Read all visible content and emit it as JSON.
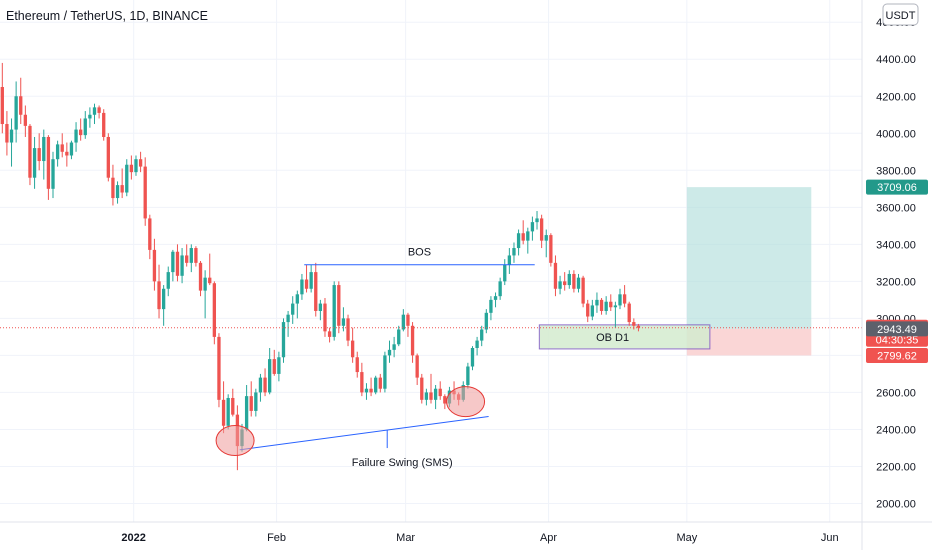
{
  "header": {
    "symbol_title": "Ethereum / TetherUS, 1D, BINANCE",
    "currency": "USDT"
  },
  "colors": {
    "up": "#26a69a",
    "down": "#ef5350",
    "grid": "#f0f3fa",
    "axis_text": "#131722",
    "line": "#2962ff",
    "target_zone": "#b2dfdb",
    "stop_zone": "#f8c4c4",
    "ob_zone": "#d4ecd0",
    "price_line": "#ef5350"
  },
  "chart_data": {
    "type": "candlestick",
    "title": "Ethereum / TetherUS, 1D, BINANCE",
    "ylim": [
      1900,
      4720
    ],
    "y_ticks": [
      2000,
      2200,
      2400,
      2600,
      2800,
      3000,
      3200,
      3400,
      3600,
      3800,
      4000,
      4200,
      4400,
      4600
    ],
    "y_tick_labels": [
      "2000.00",
      "2200.00",
      "2400.00",
      "2600.00",
      "2800.00",
      "3000.00",
      "3200.00",
      "3400.00",
      "3600.00",
      "3800.00",
      "4000.00",
      "4200.00",
      "4400.00",
      "4600.00"
    ],
    "x_start_date": "2021-12-03",
    "x_end_date": "2022-06-08",
    "x_ticks": [
      {
        "date": "2022-01-01",
        "label": "2022",
        "bold": true
      },
      {
        "date": "2022-02-01",
        "label": "Feb",
        "bold": false
      },
      {
        "date": "2022-03-01",
        "label": "Mar",
        "bold": false
      },
      {
        "date": "2022-04-01",
        "label": "Apr",
        "bold": false
      },
      {
        "date": "2022-05-01",
        "label": "May",
        "bold": false
      },
      {
        "date": "2022-06-01",
        "label": "Jun",
        "bold": false
      }
    ],
    "first_candle_date": "2021-12-03",
    "ohlc": [
      [
        4250,
        4380,
        4000,
        4050
      ],
      [
        4050,
        4120,
        3880,
        3950
      ],
      [
        3950,
        4080,
        3820,
        4020
      ],
      [
        4020,
        4280,
        3950,
        4200
      ],
      [
        4200,
        4300,
        4050,
        4100
      ],
      [
        4100,
        4150,
        3980,
        4040
      ],
      [
        4040,
        4050,
        3720,
        3760
      ],
      [
        3760,
        3980,
        3700,
        3920
      ],
      [
        3920,
        4000,
        3800,
        3850
      ],
      [
        3850,
        4020,
        3750,
        3980
      ],
      [
        3980,
        3990,
        3640,
        3700
      ],
      [
        3700,
        3900,
        3650,
        3860
      ],
      [
        3860,
        3960,
        3820,
        3940
      ],
      [
        3940,
        4000,
        3870,
        3900
      ],
      [
        3900,
        3950,
        3820,
        3880
      ],
      [
        3880,
        3960,
        3860,
        3950
      ],
      [
        3950,
        4060,
        3900,
        4020
      ],
      [
        4020,
        4080,
        3960,
        3990
      ],
      [
        3990,
        4120,
        3970,
        4080
      ],
      [
        4080,
        4140,
        4030,
        4100
      ],
      [
        4100,
        4160,
        4050,
        4140
      ],
      [
        4140,
        4150,
        4080,
        4110
      ],
      [
        4110,
        4130,
        3960,
        3980
      ],
      [
        3980,
        4000,
        3740,
        3760
      ],
      [
        3760,
        3830,
        3610,
        3650
      ],
      [
        3650,
        3740,
        3620,
        3720
      ],
      [
        3720,
        3810,
        3650,
        3680
      ],
      [
        3680,
        3860,
        3660,
        3830
      ],
      [
        3830,
        3880,
        3750,
        3790
      ],
      [
        3790,
        3880,
        3770,
        3860
      ],
      [
        3860,
        3900,
        3790,
        3820
      ],
      [
        3820,
        3870,
        3500,
        3540
      ],
      [
        3540,
        3560,
        3320,
        3370
      ],
      [
        3370,
        3430,
        3150,
        3200
      ],
      [
        3200,
        3290,
        3000,
        3050
      ],
      [
        3050,
        3180,
        2960,
        3160
      ],
      [
        3160,
        3280,
        3120,
        3250
      ],
      [
        3250,
        3370,
        3200,
        3360
      ],
      [
        3360,
        3400,
        3200,
        3230
      ],
      [
        3230,
        3380,
        3190,
        3340
      ],
      [
        3340,
        3400,
        3280,
        3300
      ],
      [
        3300,
        3400,
        3250,
        3380
      ],
      [
        3380,
        3390,
        3280,
        3300
      ],
      [
        3300,
        3310,
        3120,
        3150
      ],
      [
        3150,
        3260,
        3000,
        3220
      ],
      [
        3220,
        3350,
        3180,
        3190
      ],
      [
        3190,
        3200,
        2860,
        2900
      ],
      [
        2900,
        2920,
        2520,
        2560
      ],
      [
        2560,
        2660,
        2380,
        2420
      ],
      [
        2420,
        2590,
        2400,
        2570
      ],
      [
        2570,
        2620,
        2470,
        2480
      ],
      [
        2480,
        2530,
        2180,
        2310
      ],
      [
        2310,
        2430,
        2280,
        2400
      ],
      [
        2400,
        2640,
        2390,
        2580
      ],
      [
        2580,
        2660,
        2470,
        2500
      ],
      [
        2500,
        2620,
        2470,
        2600
      ],
      [
        2600,
        2700,
        2550,
        2680
      ],
      [
        2680,
        2730,
        2580,
        2600
      ],
      [
        2600,
        2840,
        2590,
        2780
      ],
      [
        2780,
        2830,
        2690,
        2700
      ],
      [
        2700,
        2820,
        2660,
        2790
      ],
      [
        2790,
        3000,
        2760,
        2980
      ],
      [
        2980,
        3040,
        2900,
        3020
      ],
      [
        3020,
        3120,
        2970,
        3080
      ],
      [
        3080,
        3150,
        3000,
        3130
      ],
      [
        3130,
        3240,
        3100,
        3210
      ],
      [
        3210,
        3290,
        3140,
        3160
      ],
      [
        3160,
        3290,
        3140,
        3250
      ],
      [
        3250,
        3300,
        3010,
        3040
      ],
      [
        3040,
        3100,
        2990,
        3080
      ],
      [
        3080,
        3110,
        2900,
        2930
      ],
      [
        2930,
        2950,
        2870,
        2900
      ],
      [
        2900,
        3200,
        2880,
        3180
      ],
      [
        3180,
        3200,
        2920,
        2960
      ],
      [
        2960,
        3060,
        2930,
        3000
      ],
      [
        3000,
        3020,
        2850,
        2880
      ],
      [
        2880,
        2950,
        2760,
        2790
      ],
      [
        2790,
        2820,
        2680,
        2710
      ],
      [
        2710,
        2760,
        2580,
        2600
      ],
      [
        2600,
        2650,
        2560,
        2620
      ],
      [
        2620,
        2680,
        2580,
        2600
      ],
      [
        2600,
        2690,
        2590,
        2680
      ],
      [
        2680,
        2700,
        2600,
        2620
      ],
      [
        2620,
        2820,
        2600,
        2800
      ],
      [
        2800,
        2880,
        2760,
        2830
      ],
      [
        2830,
        2900,
        2790,
        2860
      ],
      [
        2860,
        2960,
        2850,
        2940
      ],
      [
        2940,
        3050,
        2930,
        3020
      ],
      [
        3020,
        3030,
        2900,
        2960
      ],
      [
        2960,
        2980,
        2760,
        2800
      ],
      [
        2800,
        2810,
        2640,
        2680
      ],
      [
        2680,
        2700,
        2540,
        2560
      ],
      [
        2560,
        2620,
        2530,
        2600
      ],
      [
        2600,
        2700,
        2540,
        2560
      ],
      [
        2560,
        2640,
        2510,
        2620
      ],
      [
        2620,
        2660,
        2560,
        2580
      ],
      [
        2580,
        2590,
        2510,
        2540
      ],
      [
        2540,
        2630,
        2520,
        2610
      ],
      [
        2610,
        2660,
        2560,
        2590
      ],
      [
        2590,
        2600,
        2530,
        2560
      ],
      [
        2560,
        2660,
        2550,
        2640
      ],
      [
        2640,
        2760,
        2620,
        2740
      ],
      [
        2740,
        2850,
        2720,
        2840
      ],
      [
        2840,
        2900,
        2800,
        2880
      ],
      [
        2880,
        2960,
        2850,
        2940
      ],
      [
        2940,
        3050,
        2920,
        3030
      ],
      [
        3030,
        3120,
        2990,
        3100
      ],
      [
        3100,
        3140,
        3060,
        3120
      ],
      [
        3120,
        3220,
        3100,
        3200
      ],
      [
        3200,
        3320,
        3180,
        3290
      ],
      [
        3290,
        3380,
        3240,
        3340
      ],
      [
        3340,
        3410,
        3300,
        3380
      ],
      [
        3380,
        3480,
        3340,
        3460
      ],
      [
        3460,
        3530,
        3400,
        3420
      ],
      [
        3420,
        3490,
        3350,
        3470
      ],
      [
        3470,
        3550,
        3420,
        3520
      ],
      [
        3520,
        3580,
        3480,
        3540
      ],
      [
        3540,
        3560,
        3380,
        3420
      ],
      [
        3420,
        3480,
        3330,
        3450
      ],
      [
        3450,
        3460,
        3280,
        3300
      ],
      [
        3300,
        3340,
        3120,
        3160
      ],
      [
        3160,
        3230,
        3130,
        3200
      ],
      [
        3200,
        3250,
        3150,
        3180
      ],
      [
        3180,
        3260,
        3160,
        3240
      ],
      [
        3240,
        3260,
        3140,
        3160
      ],
      [
        3160,
        3240,
        3140,
        3220
      ],
      [
        3220,
        3230,
        3060,
        3080
      ],
      [
        3080,
        3100,
        2980,
        3010
      ],
      [
        3010,
        3100,
        2990,
        3070
      ],
      [
        3070,
        3140,
        3030,
        3100
      ],
      [
        3100,
        3110,
        3020,
        3040
      ],
      [
        3040,
        3120,
        3020,
        3090
      ],
      [
        3090,
        3130,
        3040,
        3060
      ],
      [
        3060,
        3090,
        2950,
        3070
      ],
      [
        3070,
        3160,
        3050,
        3130
      ],
      [
        3130,
        3180,
        3060,
        3080
      ],
      [
        3080,
        3090,
        2960,
        2980
      ],
      [
        2980,
        3000,
        2940,
        2960
      ],
      [
        2960,
        2970,
        2930,
        2949.35
      ]
    ],
    "price_line_value": 2949.35,
    "annotations": {
      "bos": {
        "label": "BOS",
        "level": 3290,
        "from": "2022-02-07",
        "to": "2022-03-29"
      },
      "failure_swing": {
        "label": "Failure Swing (SMS)",
        "from": {
          "date": "2022-01-24",
          "price": 2290
        },
        "to": {
          "date": "2022-03-19",
          "price": 2470
        },
        "stem_date": "2022-02-25"
      },
      "order_block": {
        "label": "OB D1",
        "from": "2022-03-30",
        "to": "2022-05-06",
        "top": 2965,
        "bottom": 2835
      },
      "swing_circles": [
        {
          "date": "2022-01-23",
          "price": 2340
        },
        {
          "date": "2022-03-14",
          "price": 2550
        }
      ],
      "position": {
        "from": "2022-05-01",
        "to": "2022-05-28",
        "entry": 2943.49,
        "target": 3709.06,
        "stop": 2799.62
      }
    },
    "price_labels": [
      {
        "value": 3709.06,
        "text": "3709.06",
        "kind": "target"
      },
      {
        "value": 2949.35,
        "text": "2949.35",
        "subtext": "04:30:35",
        "kind": "last"
      },
      {
        "value": 2943.49,
        "text": "2943.49",
        "kind": "entry"
      },
      {
        "value": 2799.62,
        "text": "2799.62",
        "kind": "stop"
      }
    ]
  }
}
